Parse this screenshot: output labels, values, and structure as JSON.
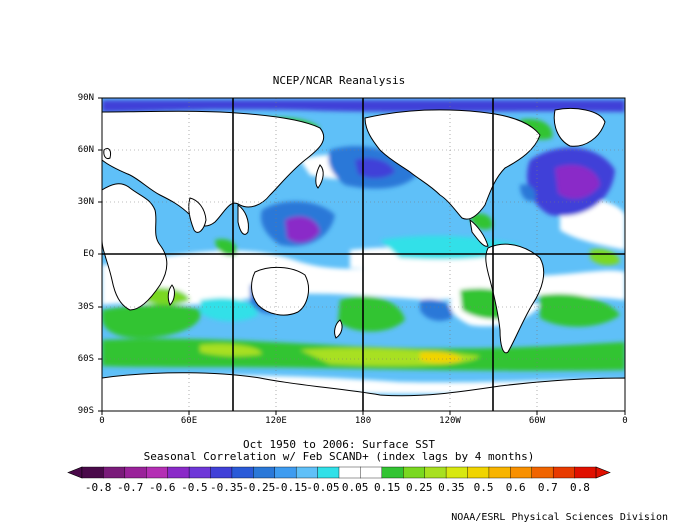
{
  "header": {
    "title": "NCEP/NCAR Reanalysis"
  },
  "caption": {
    "line1": "Oct 1950 to 2006: Surface SST",
    "line2": "Seasonal Correlation w/ Feb SCAND+ (index lags by 4 months)"
  },
  "credit": "NOAA/ESRL Physical Sciences Division",
  "map": {
    "lat_labels": [
      "90N",
      "60N",
      "30N",
      "EQ",
      "30S",
      "60S",
      "90S"
    ],
    "lon_labels": [
      "0",
      "60E",
      "120E",
      "180",
      "120W",
      "60W",
      "0"
    ]
  },
  "colorbar": {
    "labels": [
      "-0.8",
      "-0.7",
      "-0.6",
      "-0.5",
      "-0.35",
      "-0.25",
      "-0.15",
      "-0.05",
      "0.05",
      "0.15",
      "0.25",
      "0.35",
      "0.5",
      "0.6",
      "0.7",
      "0.8"
    ],
    "colors": [
      "#4a0a4a",
      "#7a1b7a",
      "#9a229a",
      "#b42fb4",
      "#8a2ac8",
      "#6e37d8",
      "#4040d8",
      "#2a5ad8",
      "#2a78d8",
      "#3e9cf0",
      "#5fc0f8",
      "#30e0e8",
      "#ffffff",
      "#ffffff",
      "#33c433",
      "#7ad820",
      "#a8e020",
      "#d8e810",
      "#f0d400",
      "#f8b400",
      "#f89000",
      "#f06400",
      "#e83a00",
      "#e01000"
    ]
  },
  "colors": {
    "land": "#ffffff",
    "coast": "#000000",
    "white_band": "#ffffff",
    "weak_negative": "#30e0e8",
    "negative": "#5fc0f8",
    "moderate_negative": "#2a78d8",
    "strong_negative": "#4040d8",
    "very_strong_negative": "#8a2ac8",
    "positive": "#33c433",
    "moderate_positive": "#a8e020",
    "strong_positive": "#f0d400"
  }
}
